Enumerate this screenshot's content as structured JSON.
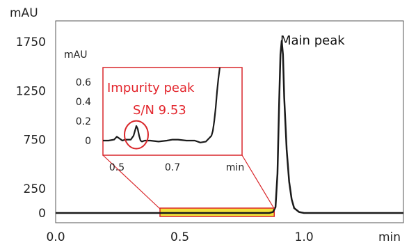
{
  "chart_data": {
    "type": "line",
    "title": "",
    "xlabel": "min",
    "ylabel": "mAU",
    "xlim": [
      0.0,
      1.4
    ],
    "ylim": [
      -100,
      2000
    ],
    "x_ticks": [
      "0.0",
      "0.5",
      "1.0"
    ],
    "y_ticks": [
      "0",
      "250",
      "750",
      "1250",
      "1750"
    ],
    "series": [
      {
        "x": [
          0.0,
          0.2,
          0.42,
          0.6,
          0.8,
          0.86,
          0.875,
          0.885,
          0.893,
          0.9,
          0.905,
          0.91,
          0.915,
          0.92,
          0.93,
          0.94,
          0.95,
          0.96,
          0.98,
          1.0,
          1.2,
          1.4
        ],
        "values": [
          0,
          0,
          0,
          0,
          0,
          0,
          10,
          60,
          400,
          1150,
          1620,
          1760,
          1620,
          1180,
          650,
          320,
          140,
          50,
          10,
          0,
          0,
          0
        ]
      }
    ],
    "annotations": {
      "main_peak_label": "Main peak",
      "highlight_range": [
        0.42,
        0.88
      ],
      "highlight_color": "#f2e23a",
      "highlight_border": "#d9262a"
    },
    "inset": {
      "ylabel": "mAU",
      "xlabel": "min",
      "xlim": [
        0.45,
        0.95
      ],
      "ylim": [
        -0.12,
        0.75
      ],
      "x_ticks": [
        "0.5",
        "0.7"
      ],
      "y_ticks": [
        "0.6",
        "0.4",
        "0.2",
        "0"
      ],
      "impurity_label": "Impurity peak",
      "sn_label": "S/N 9.53",
      "label_color": "#e3262d",
      "series": {
        "x": [
          0.45,
          0.47,
          0.49,
          0.5,
          0.51,
          0.52,
          0.53,
          0.55,
          0.56,
          0.565,
          0.57,
          0.575,
          0.58,
          0.585,
          0.59,
          0.6,
          0.62,
          0.65,
          0.68,
          0.7,
          0.72,
          0.75,
          0.78,
          0.8,
          0.82,
          0.83,
          0.84,
          0.845,
          0.85,
          0.855,
          0.86,
          0.865,
          0.87
        ],
        "values": [
          0.0,
          0.0,
          0.01,
          0.04,
          0.02,
          0.0,
          0.01,
          0.01,
          0.05,
          0.1,
          0.15,
          0.12,
          0.05,
          0.0,
          -0.01,
          0.0,
          0.0,
          -0.01,
          0.0,
          0.01,
          0.01,
          0.0,
          0.0,
          -0.02,
          -0.01,
          0.02,
          0.05,
          0.1,
          0.2,
          0.33,
          0.5,
          0.64,
          0.75
        ]
      }
    }
  }
}
